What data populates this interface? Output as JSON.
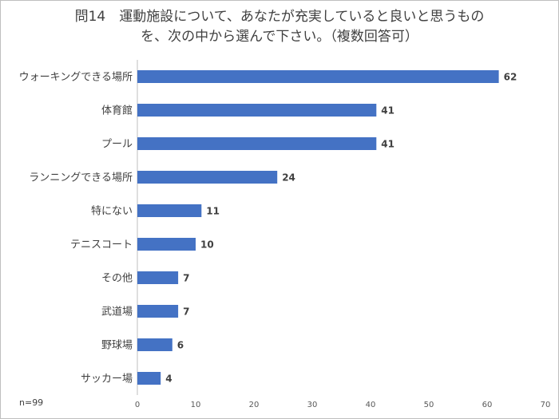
{
  "chart_data": {
    "type": "bar",
    "orientation": "horizontal",
    "title_lines": [
      "問14　運動施設について、あなたが充実していると良いと思うもの",
      "を、次の中から選んで下さい。（複数回答可）"
    ],
    "categories": [
      "ウォーキングできる場所",
      "体育館",
      "プール",
      "ランニングできる場所",
      "特にない",
      "テニスコート",
      "その他",
      "武道場",
      "野球場",
      "サッカー場"
    ],
    "values": [
      62,
      41,
      41,
      24,
      11,
      10,
      7,
      7,
      6,
      4
    ],
    "xlim": [
      0,
      70
    ],
    "xticks": [
      0,
      10,
      20,
      30,
      40,
      50,
      60,
      70
    ],
    "grid": false,
    "bar_color": "#4472c4",
    "note": "n=99"
  }
}
